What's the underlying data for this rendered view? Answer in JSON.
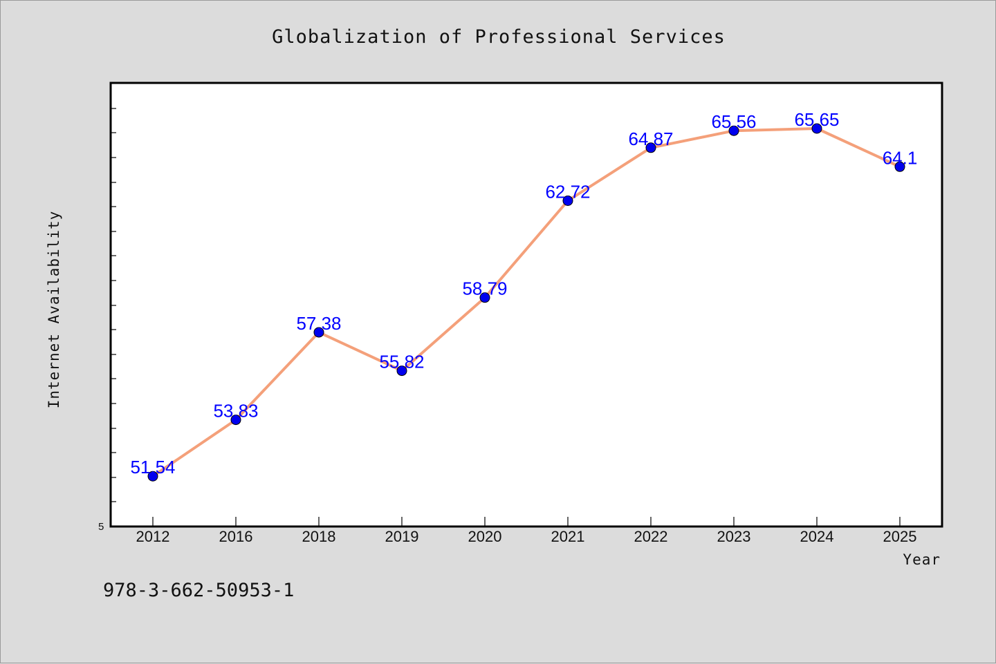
{
  "chart_data": {
    "type": "line",
    "title": "Globalization of Professional Services",
    "xlabel": "Year",
    "ylabel": "Internet Availability",
    "categories": [
      "2012",
      "2016",
      "2018",
      "2019",
      "2020",
      "2021",
      "2022",
      "2023",
      "2024",
      "2025"
    ],
    "series": [
      {
        "values": [
          51.54,
          53.83,
          57.38,
          55.82,
          58.79,
          62.72,
          64.87,
          65.56,
          65.65,
          64.1
        ],
        "labels": [
          "51.54",
          "53.83",
          "57.38",
          "55.82",
          "58.79",
          "62.72",
          "64.87",
          "65.56",
          "65.65",
          "64.1"
        ]
      }
    ],
    "y_axis_min_label": "5",
    "ylim": [
      49.5,
      67.5
    ],
    "grid": false,
    "line_color": "#f4a07a",
    "marker_color": "#0000ee",
    "label_color": "#0000ff"
  },
  "footer": {
    "text": "978-3-662-50953-1"
  }
}
